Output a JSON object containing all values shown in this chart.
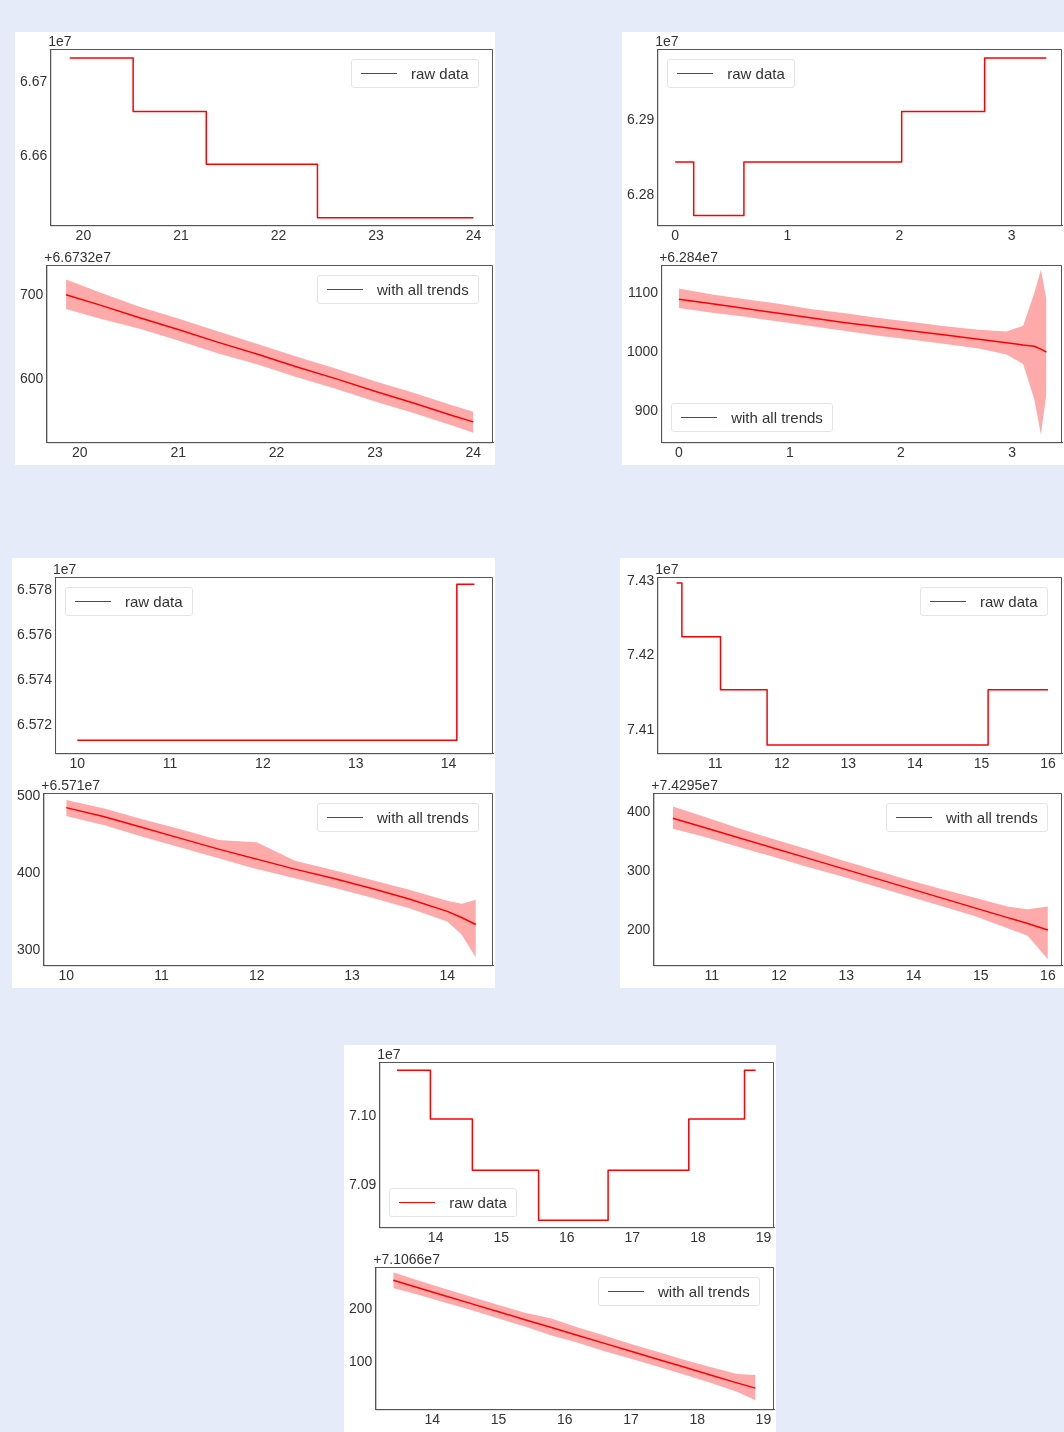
{
  "chart_data": [
    {
      "type": "step",
      "x": [
        19.86,
        20.51,
        21.26,
        22.4,
        24.0
      ],
      "series": [
        {
          "name": "raw data",
          "color": "#ff0000",
          "values": [
            6.6732,
            6.666,
            6.6589,
            6.6517,
            6.6517
          ]
        }
      ],
      "xlim": [
        19.66,
        24.2
      ],
      "ylim": [
        6.6507,
        6.6744
      ],
      "xticks": [
        20,
        21,
        22,
        23,
        24
      ],
      "yticks": [
        6.66,
        6.67
      ],
      "legend": "top right",
      "annotations": [
        "1e7"
      ]
    },
    {
      "type": "line",
      "x": [
        19.86,
        20.2,
        20.6,
        21,
        21.4,
        21.8,
        22.2,
        22.6,
        23,
        23.4,
        23.8,
        24.0
      ],
      "series": [
        {
          "name": "with all trends",
          "color": "#ff0000",
          "values": [
            700,
            688,
            673,
            659,
            644,
            630,
            615,
            601,
            586,
            572,
            557,
            550
          ],
          "lower": [
            683,
            672,
            660,
            646,
            631,
            618,
            603,
            589,
            574,
            560,
            545,
            537
          ],
          "upper": [
            718,
            703,
            686,
            672,
            657,
            642,
            627,
            613,
            598,
            584,
            569,
            562
          ]
        }
      ],
      "xlim": [
        19.66,
        24.2
      ],
      "ylim": [
        526,
        735
      ],
      "xticks": [
        20,
        21,
        22,
        23,
        24
      ],
      "yticks": [
        600,
        700
      ],
      "legend": "top right",
      "annotations": [
        "+6.6732e7"
      ]
    },
    {
      "type": "step",
      "x": [
        0,
        0.165,
        0.613,
        2.02,
        2.76,
        3.31
      ],
      "series": [
        {
          "name": "raw data",
          "color": "#ff0000",
          "values": [
            6.2844,
            6.2772,
            6.2844,
            6.2912,
            6.2984,
            6.2984
          ]
        }
      ],
      "xlim": [
        -0.16,
        3.45
      ],
      "ylim": [
        6.2759,
        6.2996
      ],
      "xticks": [
        0,
        1,
        2,
        3
      ],
      "yticks": [
        6.28,
        6.29
      ],
      "legend": "top left",
      "annotations": [
        "1e7"
      ]
    },
    {
      "type": "line",
      "x": [
        0,
        0.3,
        0.6,
        0.9,
        1.2,
        1.5,
        1.8,
        2.1,
        2.4,
        2.7,
        2.95,
        3.1,
        3.2,
        3.26,
        3.31
      ],
      "series": [
        {
          "name": "with all trends",
          "color": "#ff0000",
          "values": [
            1090,
            1082,
            1074,
            1066,
            1058,
            1050,
            1043,
            1036,
            1029,
            1022,
            1016,
            1012,
            1010,
            1005,
            1000
          ],
          "lower": [
            1075,
            1067,
            1060,
            1052,
            1044,
            1036,
            1028,
            1021,
            1014,
            1006,
            996,
            980,
            920,
            860,
            930
          ],
          "upper": [
            1108,
            1098,
            1090,
            1082,
            1073,
            1066,
            1058,
            1051,
            1044,
            1038,
            1035,
            1045,
            1100,
            1140,
            1090
          ]
        }
      ],
      "xlim": [
        -0.16,
        3.45
      ],
      "ylim": [
        847,
        1148
      ],
      "xticks": [
        0,
        1,
        2,
        3
      ],
      "yticks": [
        900,
        1000,
        1100
      ],
      "legend": "bottom left",
      "annotations": [
        "+6.284e7"
      ]
    },
    {
      "type": "step",
      "x": [
        10.0,
        14.09,
        14.28
      ],
      "series": [
        {
          "name": "raw data",
          "color": "#ff0000",
          "values": [
            6.57132,
            6.57827,
            6.57827
          ]
        }
      ],
      "xlim": [
        9.76,
        14.48
      ],
      "ylim": [
        6.57074,
        6.57859
      ],
      "xticks": [
        10,
        11,
        12,
        13,
        14
      ],
      "yticks": [
        6.572,
        6.574,
        6.576,
        6.578
      ],
      "legend": "top left",
      "annotations": [
        "1e7"
      ]
    },
    {
      "type": "line",
      "x": [
        10,
        10.4,
        10.8,
        11.2,
        11.6,
        12,
        12.4,
        12.8,
        13.2,
        13.6,
        14,
        14.15,
        14.3
      ],
      "series": [
        {
          "name": "with all trends",
          "color": "#ff0000",
          "values": [
            485,
            473,
            459,
            445,
            431,
            418,
            405,
            393,
            380,
            366,
            350,
            342,
            333
          ],
          "lower": [
            474,
            462,
            447,
            433,
            419,
            405,
            393,
            381,
            368,
            354,
            337,
            320,
            290
          ],
          "upper": [
            495,
            484,
            470,
            457,
            443,
            440,
            416,
            404,
            391,
            378,
            364,
            360,
            365
          ]
        }
      ],
      "xlim": [
        9.76,
        14.48
      ],
      "ylim": [
        280,
        504
      ],
      "xticks": [
        10,
        11,
        12,
        13,
        14
      ],
      "yticks": [
        300,
        400,
        500
      ],
      "legend": "top right",
      "annotations": [
        "+6.571e7"
      ]
    },
    {
      "type": "step",
      "x": [
        10.42,
        10.5,
        11.08,
        11.78,
        15.1,
        16.0
      ],
      "series": [
        {
          "name": "raw data",
          "color": "#ff0000",
          "values": [
            7.4297,
            7.4225,
            7.4154,
            7.408,
            7.4154,
            7.4154
          ]
        }
      ],
      "xlim": [
        10.13,
        16.21
      ],
      "ylim": [
        7.4069,
        7.4305
      ],
      "xticks": [
        11,
        12,
        13,
        14,
        15,
        16
      ],
      "yticks": [
        7.41,
        7.42,
        7.43
      ],
      "legend": "top right",
      "annotations": [
        "1e7"
      ]
    },
    {
      "type": "line",
      "x": [
        10.42,
        10.9,
        11.4,
        11.9,
        12.4,
        12.9,
        13.4,
        13.9,
        14.4,
        14.9,
        15.4,
        15.7,
        16.0
      ],
      "series": [
        {
          "name": "with all trends",
          "color": "#ff0000",
          "values": [
            390,
            374,
            357,
            340,
            323,
            306,
            289,
            272,
            255,
            238,
            221,
            211,
            200
          ],
          "lower": [
            372,
            358,
            341,
            325,
            308,
            292,
            275,
            258,
            241,
            224,
            203,
            190,
            150
          ],
          "upper": [
            410,
            392,
            373,
            355,
            338,
            320,
            303,
            286,
            270,
            255,
            240,
            235,
            240
          ]
        }
      ],
      "xlim": [
        10.13,
        16.21
      ],
      "ylim": [
        140,
        433
      ],
      "xticks": [
        11,
        12,
        13,
        14,
        15,
        16
      ],
      "yticks": [
        200,
        300,
        400
      ],
      "legend": "top right",
      "annotations": [
        "+7.4295e7"
      ]
    },
    {
      "type": "step",
      "x": [
        13.41,
        13.92,
        14.56,
        15.57,
        16.63,
        17.86,
        18.71,
        18.88
      ],
      "series": [
        {
          "name": "raw data",
          "color": "#ff0000",
          "values": [
            7.1066,
            7.0996,
            7.0922,
            7.085,
            7.0922,
            7.0996,
            7.1066,
            7.1066
          ]
        }
      ],
      "xlim": [
        13.14,
        19.16
      ],
      "ylim": [
        7.084,
        7.1078
      ],
      "xticks": [
        14,
        15,
        16,
        17,
        18,
        19
      ],
      "yticks": [
        {
          "value": 7.09,
          "label": "7.09"
        },
        {
          "value": 7.1,
          "label": "7.10"
        }
      ],
      "legend": "bottom left",
      "annotations": [
        "1e7"
      ]
    },
    {
      "type": "line",
      "x": [
        13.41,
        13.8,
        14.2,
        14.6,
        15,
        15.4,
        15.8,
        16.2,
        16.6,
        17,
        17.4,
        17.8,
        18.2,
        18.6,
        18.88
      ],
      "series": [
        {
          "name": "with all trends",
          "color": "#ff0000",
          "values": [
            255,
            240,
            225,
            210,
            195,
            180,
            165,
            150,
            135,
            120,
            105,
            90,
            75,
            60,
            50
          ],
          "lower": [
            240,
            227,
            212,
            198,
            182,
            167,
            150,
            136,
            120,
            106,
            91,
            76,
            60,
            43,
            27
          ],
          "upper": [
            270,
            254,
            238,
            223,
            208,
            193,
            182,
            165,
            150,
            134,
            119,
            104,
            90,
            77,
            75
          ]
        }
      ],
      "xlim": [
        13.14,
        19.16
      ],
      "ylim": [
        10,
        280
      ],
      "xticks": [
        14,
        15,
        16,
        17,
        18,
        19
      ],
      "yticks": [
        100,
        200
      ],
      "legend": "top right",
      "annotations": [
        "+7.1066e7"
      ]
    }
  ]
}
